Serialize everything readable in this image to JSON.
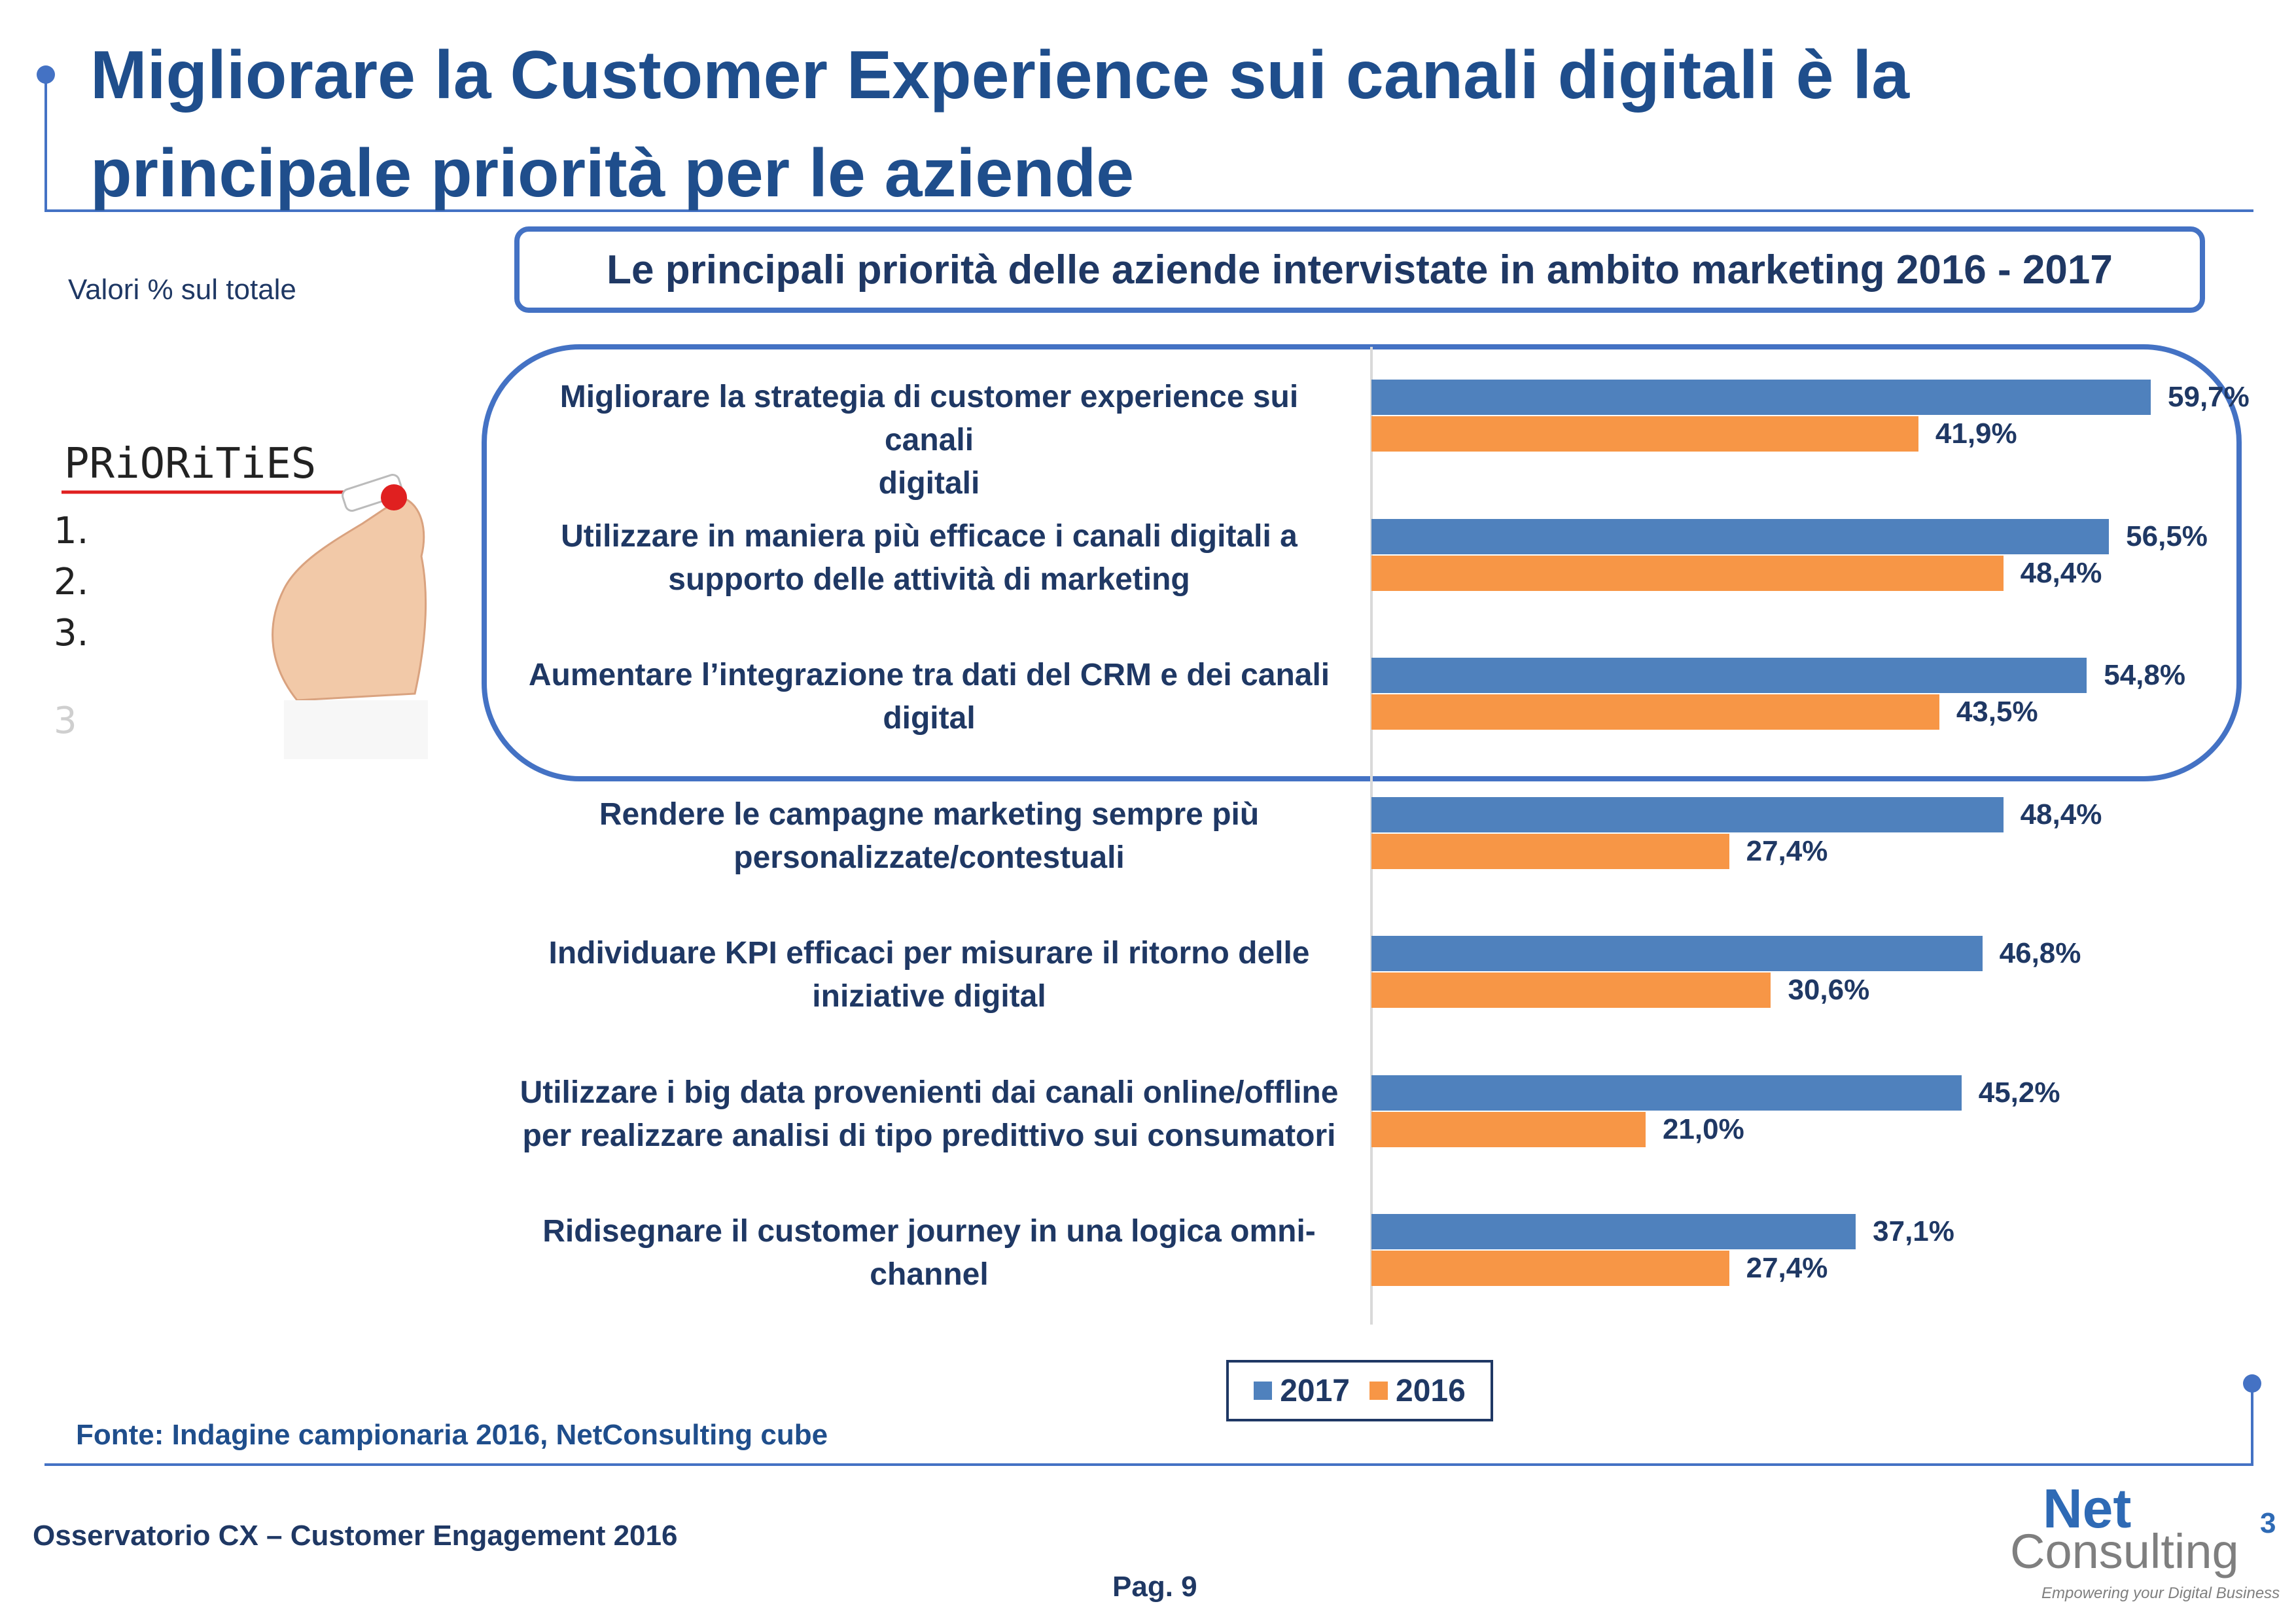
{
  "slide": {
    "title": "Migliorare la Customer Experience sui canali digitali è la principale priorità per le aziende",
    "unit_note": "Valori % sul totale",
    "chart_title": "Le principali priorità delle aziende intervistate in ambito marketing 2016 - 2017",
    "source": "Fonte: Indagine campionaria 2016, NetConsulting cube",
    "footer_left": "Osservatorio CX – Customer Engagement 2016",
    "page": "Pag. 9"
  },
  "image": {
    "word": "PRiORiTiES",
    "items": [
      "1.",
      "2.",
      "3.",
      "3"
    ]
  },
  "logo": {
    "line1": "Net",
    "line2": "Consulting",
    "sup": "3",
    "tagline": "Empowering your Digital Business"
  },
  "colors": {
    "s2017": "#4f81bd",
    "s2016": "#f79646",
    "text": "#1f3864",
    "accent": "#4472c4"
  },
  "chart_data": {
    "type": "bar",
    "orientation": "horizontal",
    "categories": [
      [
        "Migliorare la strategia di customer experience sui canali",
        "digitali"
      ],
      [
        "Utilizzare in maniera più efficace i canali digitali a",
        "supporto delle attività di marketing"
      ],
      [
        "Aumentare l’integrazione tra dati del CRM e dei canali",
        "digital"
      ],
      [
        "Rendere le campagne marketing sempre più",
        "personalizzate/contestuali"
      ],
      [
        "Individuare KPI efficaci per misurare il ritorno delle",
        "iniziative digital"
      ],
      [
        "Utilizzare i big data provenienti dai canali online/offline",
        "per realizzare analisi di tipo predittivo sui consumatori"
      ],
      [
        "Ridisegnare il customer journey in una logica omni-",
        "channel"
      ]
    ],
    "series": [
      {
        "name": "2017",
        "values": [
          59.7,
          56.5,
          54.8,
          48.4,
          46.8,
          45.2,
          37.1
        ],
        "labels": [
          "59,7%",
          "56,5%",
          "54,8%",
          "48,4%",
          "46,8%",
          "45,2%",
          "37,1%"
        ]
      },
      {
        "name": "2016",
        "values": [
          41.9,
          48.4,
          43.5,
          27.4,
          30.6,
          21.0,
          27.4
        ],
        "labels": [
          "41,9%",
          "48,4%",
          "43,5%",
          "27,4%",
          "30,6%",
          "21,0%",
          "27,4%"
        ]
      }
    ],
    "highlighted_categories": 3,
    "legend": "bottom-center"
  }
}
